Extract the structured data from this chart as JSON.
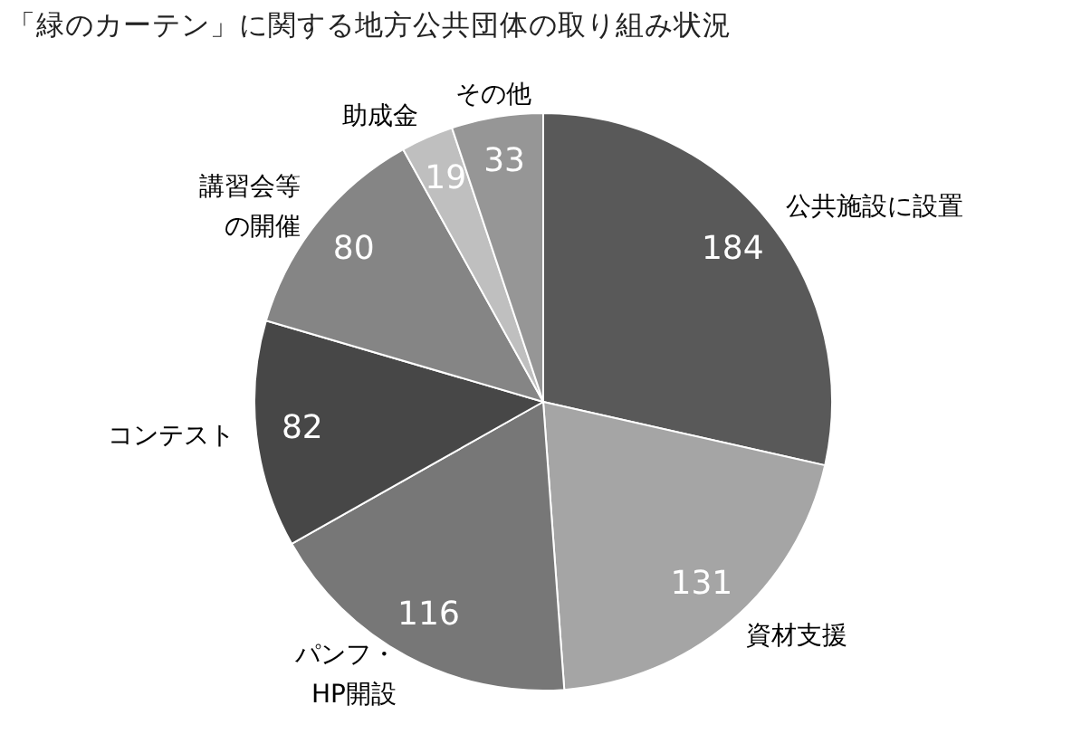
{
  "chart_data": {
    "type": "pie",
    "title": "「緑のカーテン」に関する地方公共団体の取り組み状況",
    "categories": [
      "公共施設に設置",
      "資材支援",
      "パンフ・HP開設",
      "コンテスト",
      "講習会等の開催",
      "助成金",
      "その他"
    ],
    "values": [
      184,
      131,
      116,
      82,
      80,
      19,
      33
    ],
    "colors": [
      "#595959",
      "#a5a5a5",
      "#777777",
      "#474747",
      "#858585",
      "#bfbfbf",
      "#969696"
    ],
    "data_labels": true
  }
}
